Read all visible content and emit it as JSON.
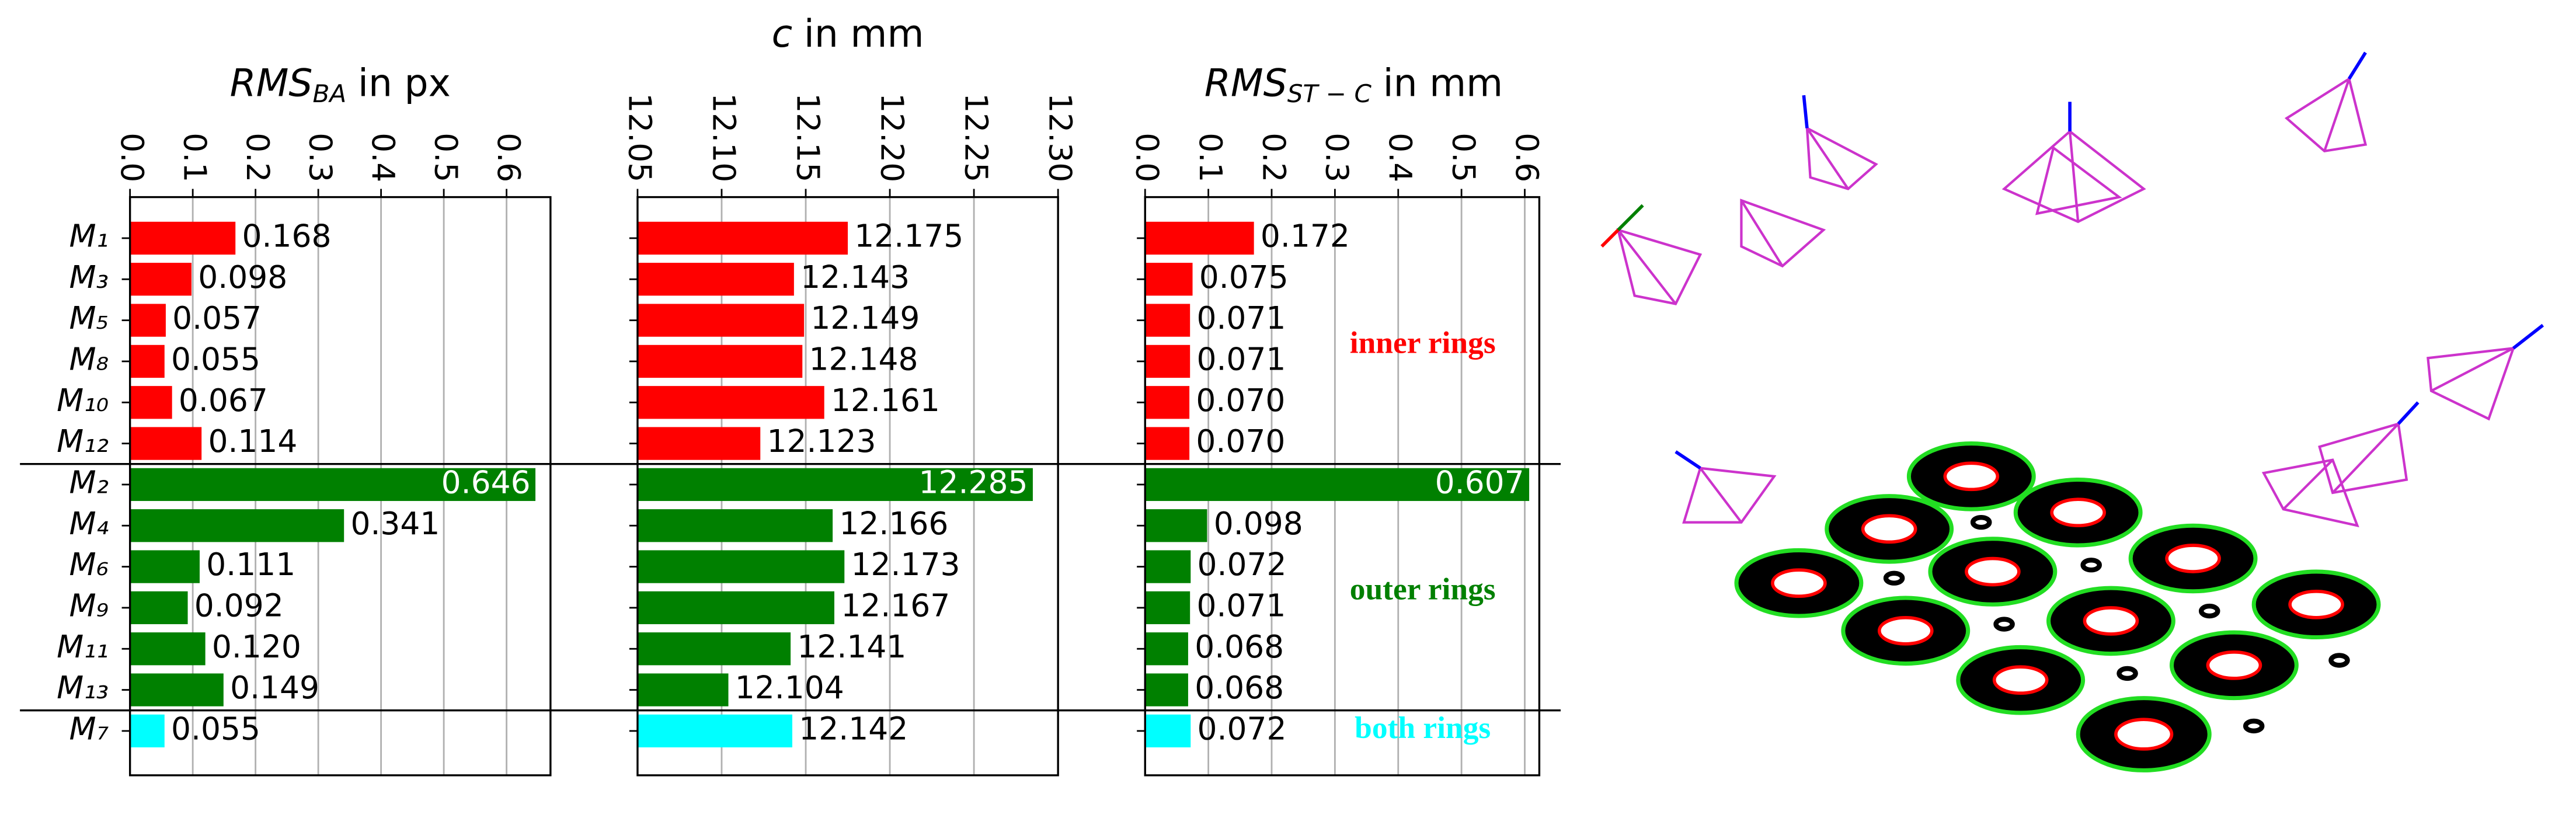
{
  "chart_data": [
    {
      "type": "hbar",
      "title": "RMS",
      "title_sub": "BA",
      "title_rest": "in px",
      "categories": [
        "M₁",
        "M₃",
        "M₅",
        "M₈",
        "M₁₀",
        "M₁₂",
        "M₂",
        "M₄",
        "M₆",
        "M₉",
        "M₁₁",
        "M₁₃",
        "M₇"
      ],
      "values": [
        0.168,
        0.098,
        0.057,
        0.055,
        0.067,
        0.114,
        0.646,
        0.341,
        0.111,
        0.092,
        0.12,
        0.149,
        0.055
      ],
      "value_labels": [
        "0.168",
        "0.098",
        "0.057",
        "0.055",
        "0.067",
        "0.114",
        "0.646",
        "0.341",
        "0.111",
        "0.092",
        "0.120",
        "0.149",
        "0.055"
      ],
      "colors": [
        "#ff0000",
        "#ff0000",
        "#ff0000",
        "#ff0000",
        "#ff0000",
        "#ff0000",
        "#008000",
        "#008000",
        "#008000",
        "#008000",
        "#008000",
        "#008000",
        "#00ffff"
      ],
      "xlim": [
        0,
        0.67
      ],
      "xticks": [
        {
          "value": 0,
          "label": "0.0"
        },
        0.1,
        0.2,
        0.3,
        0.4,
        0.5,
        0.6
      ],
      "grid": true
    },
    {
      "type": "hbar",
      "title": "c",
      "title_rest": "in mm",
      "values": [
        12.175,
        12.143,
        12.149,
        12.148,
        12.161,
        12.123,
        12.285,
        12.166,
        12.173,
        12.167,
        12.141,
        12.104,
        12.142
      ],
      "value_labels": [
        "12.175",
        "12.143",
        "12.149",
        "12.148",
        "12.161",
        "12.123",
        "12.285",
        "12.166",
        "12.173",
        "12.167",
        "12.141",
        "12.104",
        "12.142"
      ],
      "colors": [
        "#ff0000",
        "#ff0000",
        "#ff0000",
        "#ff0000",
        "#ff0000",
        "#ff0000",
        "#008000",
        "#008000",
        "#008000",
        "#008000",
        "#008000",
        "#008000",
        "#00ffff"
      ],
      "xlim": [
        12.05,
        12.3
      ],
      "xticks": [
        12.05,
        {
          "value": 12.1,
          "label": "12.10"
        },
        12.15,
        {
          "value": 12.2,
          "label": "12.20"
        },
        12.25,
        {
          "value": 12.3,
          "label": "12.30"
        }
      ],
      "grid": true
    },
    {
      "type": "hbar",
      "title": "RMS",
      "title_sub": "ST − C",
      "title_rest": "in mm",
      "values": [
        0.172,
        0.075,
        0.071,
        0.071,
        0.07,
        0.07,
        0.607,
        0.098,
        0.072,
        0.071,
        0.068,
        0.068,
        0.072
      ],
      "value_labels": [
        "0.172",
        "0.075",
        "0.071",
        "0.071",
        "0.070",
        "0.070",
        "0.607",
        "0.098",
        "0.072",
        "0.071",
        "0.068",
        "0.068",
        "0.072"
      ],
      "colors": [
        "#ff0000",
        "#ff0000",
        "#ff0000",
        "#ff0000",
        "#ff0000",
        "#ff0000",
        "#008000",
        "#008000",
        "#008000",
        "#008000",
        "#008000",
        "#008000",
        "#00ffff"
      ],
      "xlim": [
        0,
        0.623
      ],
      "xticks": [
        {
          "value": 0,
          "label": "0.0"
        },
        0.1,
        0.2,
        0.3,
        0.4,
        0.5,
        0.6
      ],
      "grid": true,
      "annotations": [
        {
          "text": "inner rings",
          "color": "#ff0000"
        },
        {
          "text": "outer rings",
          "color": "#008000"
        },
        {
          "text": "both rings",
          "color": "#00ffff"
        }
      ]
    }
  ]
}
